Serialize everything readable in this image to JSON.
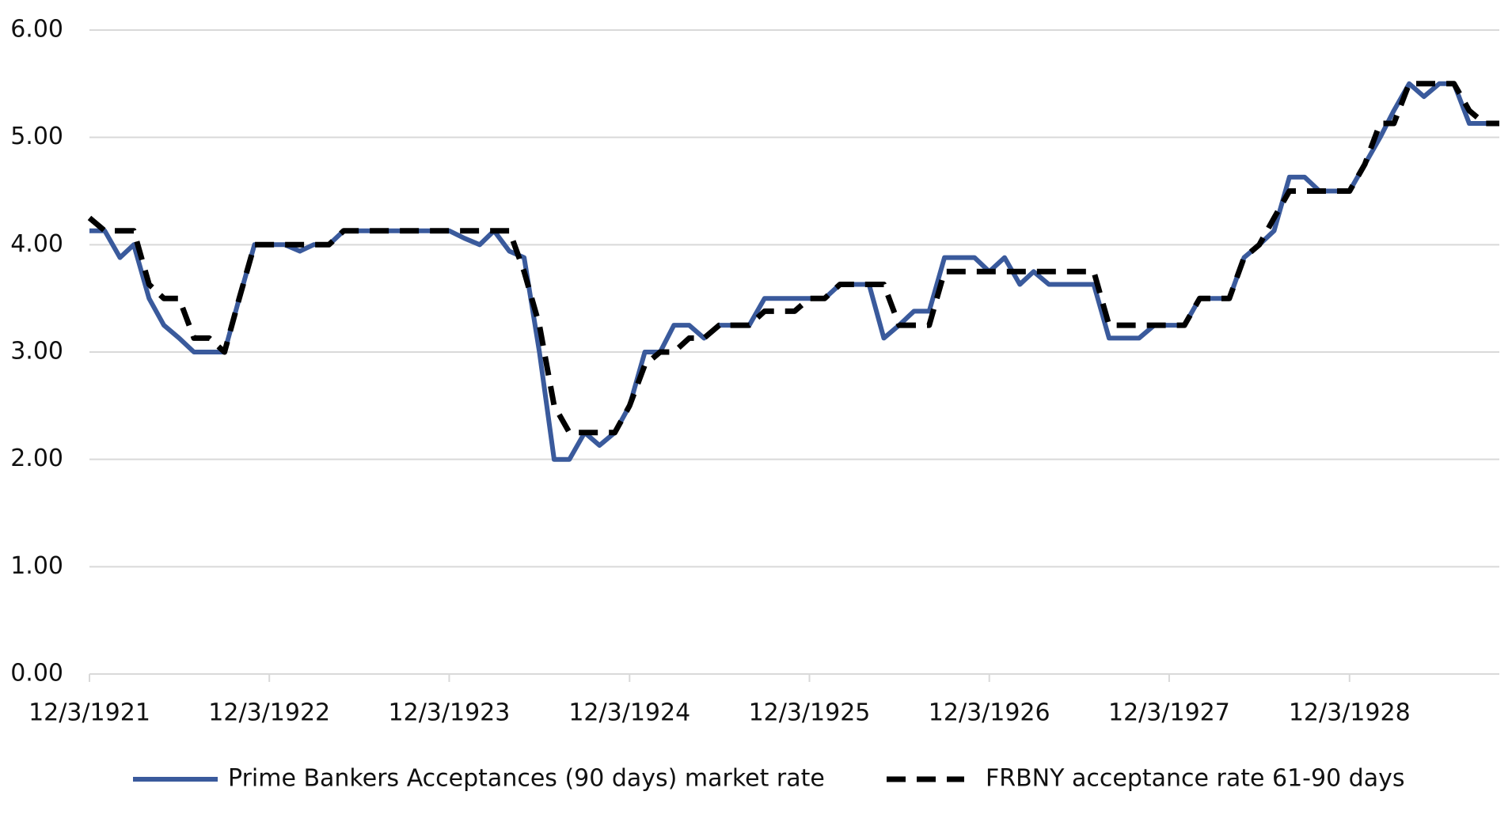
{
  "chart_data": {
    "type": "line",
    "x": [
      "1921-12-03",
      "1922-01-03",
      "1922-02-03",
      "1922-03-03",
      "1922-04-03",
      "1922-05-03",
      "1922-06-03",
      "1922-07-03",
      "1922-08-03",
      "1922-09-03",
      "1922-10-03",
      "1922-11-03",
      "1922-12-03",
      "1923-01-03",
      "1923-02-03",
      "1923-03-03",
      "1923-04-03",
      "1923-05-03",
      "1923-06-03",
      "1923-07-03",
      "1923-08-03",
      "1923-09-03",
      "1923-10-03",
      "1923-11-03",
      "1923-12-03",
      "1924-01-03",
      "1924-02-03",
      "1924-03-03",
      "1924-04-03",
      "1924-05-03",
      "1924-06-03",
      "1924-07-03",
      "1924-08-03",
      "1924-09-03",
      "1924-10-03",
      "1924-11-03",
      "1924-12-03",
      "1925-01-03",
      "1925-02-03",
      "1925-03-03",
      "1925-04-03",
      "1925-05-03",
      "1925-06-03",
      "1925-07-03",
      "1925-08-03",
      "1925-09-03",
      "1925-10-03",
      "1925-11-03",
      "1925-12-03",
      "1926-01-03",
      "1926-02-03",
      "1926-03-03",
      "1926-04-03",
      "1926-05-03",
      "1926-06-03",
      "1926-07-03",
      "1926-08-03",
      "1926-09-03",
      "1926-10-03",
      "1926-11-03",
      "1926-12-03",
      "1927-01-03",
      "1927-02-03",
      "1927-03-03",
      "1927-04-03",
      "1927-05-03",
      "1927-06-03",
      "1927-07-03",
      "1927-08-03",
      "1927-09-03",
      "1927-10-03",
      "1927-11-03",
      "1927-12-03",
      "1928-01-03",
      "1928-02-03",
      "1928-03-03",
      "1928-04-03",
      "1928-05-03",
      "1928-06-03",
      "1928-07-03",
      "1928-08-03",
      "1928-09-03",
      "1928-10-03",
      "1928-11-03",
      "1928-12-03",
      "1929-01-03",
      "1929-02-03",
      "1929-03-03",
      "1929-04-03",
      "1929-05-03",
      "1929-06-03",
      "1929-07-03",
      "1929-08-03",
      "1929-09-03",
      "1929-10-03"
    ],
    "series": [
      {
        "name": "Prime Bankers Acceptances (90 days) market rate",
        "color": "#3a5a9c",
        "dashed": false,
        "values": [
          4.13,
          4.13,
          3.88,
          4.0,
          3.5,
          3.25,
          3.13,
          3.0,
          3.0,
          3.0,
          3.5,
          4.0,
          4.0,
          4.0,
          3.94,
          4.0,
          4.0,
          4.13,
          4.13,
          4.13,
          4.13,
          4.13,
          4.13,
          4.13,
          4.13,
          4.06,
          4.0,
          4.13,
          3.94,
          3.88,
          3.0,
          2.0,
          2.0,
          2.25,
          2.13,
          2.25,
          2.5,
          3.0,
          3.0,
          3.25,
          3.25,
          3.13,
          3.25,
          3.25,
          3.25,
          3.5,
          3.5,
          3.5,
          3.5,
          3.5,
          3.63,
          3.63,
          3.63,
          3.13,
          3.25,
          3.38,
          3.38,
          3.88,
          3.88,
          3.88,
          3.75,
          3.88,
          3.63,
          3.75,
          3.63,
          3.63,
          3.63,
          3.63,
          3.13,
          3.13,
          3.13,
          3.25,
          3.25,
          3.25,
          3.5,
          3.5,
          3.5,
          3.88,
          4.0,
          4.13,
          4.63,
          4.63,
          4.5,
          4.5,
          4.5,
          4.75,
          5.0,
          5.25,
          5.5,
          5.38,
          5.5,
          5.5,
          5.13,
          5.13,
          5.13
        ]
      },
      {
        "name": "FRBNY acceptance rate 61-90 days",
        "color": "#000000",
        "dashed": true,
        "values": [
          4.25,
          4.13,
          4.13,
          4.13,
          3.63,
          3.5,
          3.5,
          3.13,
          3.13,
          3.0,
          3.5,
          4.0,
          4.0,
          4.0,
          4.0,
          4.0,
          4.0,
          4.13,
          4.13,
          4.13,
          4.13,
          4.13,
          4.13,
          4.13,
          4.13,
          4.13,
          4.13,
          4.13,
          4.13,
          3.75,
          3.25,
          2.5,
          2.25,
          2.25,
          2.25,
          2.25,
          2.5,
          2.88,
          3.0,
          3.0,
          3.13,
          3.13,
          3.25,
          3.25,
          3.25,
          3.38,
          3.38,
          3.38,
          3.5,
          3.5,
          3.63,
          3.63,
          3.63,
          3.63,
          3.25,
          3.25,
          3.25,
          3.75,
          3.75,
          3.75,
          3.75,
          3.75,
          3.75,
          3.75,
          3.75,
          3.75,
          3.75,
          3.75,
          3.25,
          3.25,
          3.25,
          3.25,
          3.25,
          3.25,
          3.5,
          3.5,
          3.5,
          3.88,
          4.0,
          4.25,
          4.5,
          4.5,
          4.5,
          4.5,
          4.5,
          4.75,
          5.13,
          5.13,
          5.5,
          5.5,
          5.5,
          5.5,
          5.25,
          5.13,
          5.13
        ]
      }
    ],
    "xlim": [
      "1921-12-03",
      "1929-10-03"
    ],
    "xticks": [
      {
        "value": "1921-12-03",
        "label": "12/3/1921"
      },
      {
        "value": "1922-12-03",
        "label": "12/3/1922"
      },
      {
        "value": "1923-12-03",
        "label": "12/3/1923"
      },
      {
        "value": "1924-12-03",
        "label": "12/3/1924"
      },
      {
        "value": "1925-12-03",
        "label": "12/3/1925"
      },
      {
        "value": "1926-12-03",
        "label": "12/3/1926"
      },
      {
        "value": "1927-12-03",
        "label": "12/3/1927"
      },
      {
        "value": "1928-12-03",
        "label": "12/3/1928"
      }
    ],
    "ylim": [
      0,
      6
    ],
    "yticks": [
      {
        "value": 0,
        "label": "0.00"
      },
      {
        "value": 1,
        "label": "1.00"
      },
      {
        "value": 2,
        "label": "2.00"
      },
      {
        "value": 3,
        "label": "3.00"
      },
      {
        "value": 4,
        "label": "4.00"
      },
      {
        "value": 5,
        "label": "5.00"
      },
      {
        "value": 6,
        "label": "6.00"
      }
    ],
    "grid": true,
    "legend": "bottom"
  }
}
